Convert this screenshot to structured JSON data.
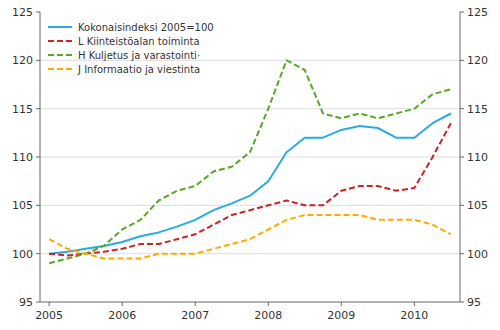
{
  "chart_data": {
    "type": "line",
    "categories": [
      "2005",
      null,
      null,
      null,
      "2006",
      null,
      null,
      null,
      "2007",
      null,
      null,
      null,
      "2008",
      null,
      null,
      null,
      "2009",
      null,
      null,
      null,
      "2010",
      null,
      null
    ],
    "series": [
      {
        "name": "Kokonaisindeksi 2005=100",
        "color": "#29ABE2",
        "line_style": "solid",
        "values": [
          100.0,
          100.2,
          100.5,
          100.8,
          101.2,
          101.8,
          102.2,
          102.8,
          103.5,
          104.5,
          105.2,
          106.0,
          107.5,
          110.5,
          112.0,
          112.0,
          112.8,
          113.2,
          113.0,
          112.0,
          112.0,
          113.5,
          114.5
        ]
      },
      {
        "name": "L Kiinteistöalan toiminta",
        "color": "#CC2222",
        "line_style": "dashed",
        "values": [
          100.0,
          99.8,
          100.0,
          100.2,
          100.5,
          101.0,
          101.0,
          101.5,
          102.0,
          103.0,
          104.0,
          104.5,
          105.0,
          105.5,
          105.0,
          105.0,
          106.5,
          107.0,
          107.0,
          106.5,
          106.8,
          110.0,
          113.5
        ]
      },
      {
        "name": "H Kuljetus ja varastointi·",
        "color": "#55AA22",
        "line_style": "dashed",
        "values": [
          99.0,
          99.5,
          100.0,
          100.8,
          102.5,
          103.5,
          105.5,
          106.5,
          107.0,
          108.5,
          109.0,
          110.5,
          115.0,
          120.0,
          119.0,
          114.5,
          114.0,
          114.5,
          114.0,
          114.5,
          115.0,
          116.5,
          117.0
        ]
      },
      {
        "name": "J Informaatio ja viestinta",
        "color": "#FFAA00",
        "line_style": "dashed",
        "values": [
          101.5,
          100.5,
          100.0,
          99.5,
          99.5,
          99.5,
          100.0,
          100.0,
          100.0,
          100.5,
          101.0,
          101.5,
          102.5,
          103.5,
          104.0,
          104.0,
          104.0,
          104.0,
          103.5,
          103.5,
          103.5,
          103.0,
          102.0
        ]
      }
    ],
    "ylim": [
      95,
      125
    ],
    "yticks": [
      95,
      100,
      105,
      110,
      115,
      120,
      125
    ],
    "y2lim": [
      95,
      125
    ],
    "y2ticks": [
      95,
      100,
      105,
      110,
      115,
      120,
      125
    ],
    "grid": true,
    "legend": "upper-left"
  }
}
